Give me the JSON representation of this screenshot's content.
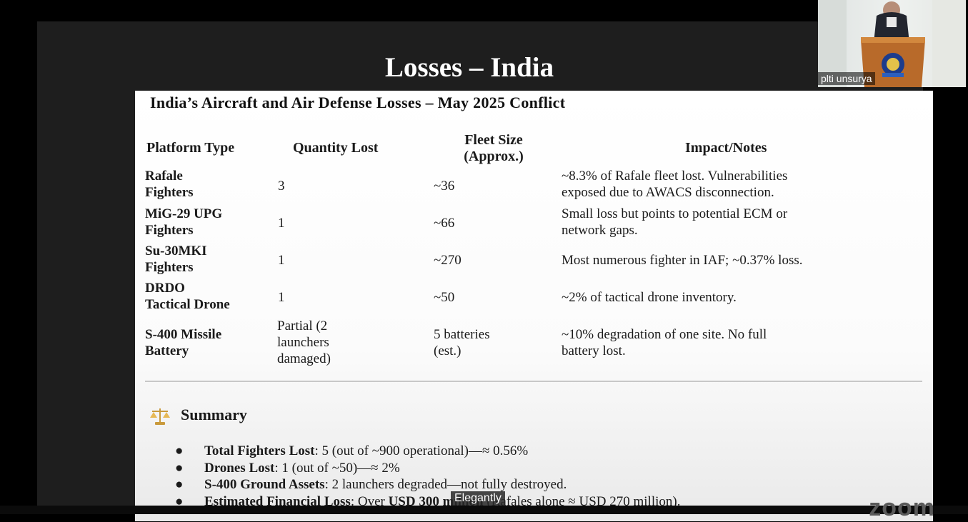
{
  "slide": {
    "title": "Losses – India",
    "card_heading": "India’s Aircraft and Air Defense Losses – May 2025 Conflict",
    "table": {
      "headers": [
        "Platform Type",
        "Quantity Lost",
        "Fleet Size\n(Approx.)",
        "Impact/Notes"
      ],
      "rows": [
        [
          "Rafale\nFighters",
          "3",
          "~36",
          "~8.3% of Rafale fleet lost. Vulnerabilities\nexposed due to AWACS disconnection."
        ],
        [
          "MiG-29 UPG\nFighters",
          "1",
          "~66",
          "Small loss but points to potential ECM or\nnetwork gaps."
        ],
        [
          "Su-30MKI\nFighters",
          "1",
          "~270",
          "Most numerous fighter in IAF; ~0.37% loss."
        ],
        [
          "DRDO\nTactical Drone",
          "1",
          "~50",
          "~2% of tactical drone inventory."
        ],
        [
          "S-400 Missile\nBattery",
          "Partial (2\nlaunchers\ndamaged)",
          "5 batteries\n(est.)",
          "~10% degradation of one site. No full\nbattery lost."
        ]
      ]
    },
    "summary": {
      "title": "Summary",
      "bullets": [
        {
          "label": "Total Fighters Lost",
          "text": ": 5 (out of ~900 operational)—≈ 0.56%"
        },
        {
          "label": "Drones Lost",
          "text": ": 1 (out of ~50)—≈ 2%"
        },
        {
          "label": "S-400 Ground Assets",
          "text": ": 2 launchers degraded—not fully destroyed."
        },
        {
          "label": "Estimated Financial Loss",
          "text": ": Over ",
          "strong": "USD 300 million",
          "tail": " (Rafales alone ≈ USD 270 million)."
        }
      ]
    }
  },
  "participant": {
    "name": "plti unsurya"
  },
  "caption": "Elegantly",
  "watermark": "zoom",
  "colors": {
    "background": "#000000",
    "share_frame": "#1e1e1e",
    "card": "#ffffff"
  }
}
